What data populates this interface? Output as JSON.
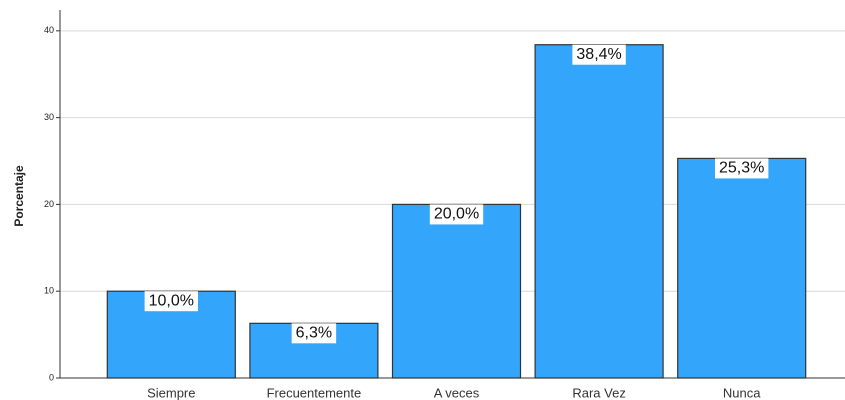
{
  "chart_data": {
    "type": "bar",
    "y_label": "Porcentaje",
    "categories": [
      "Siempre",
      "Frecuentemente",
      "A veces",
      "Rara Vez",
      "Nunca"
    ],
    "values": [
      10.0,
      6.3,
      20.0,
      38.4,
      25.3
    ],
    "value_labels": [
      "10,0%",
      "6,3%",
      "20,0%",
      "38,4%",
      "25,3%"
    ],
    "color": "#33a6fb",
    "ylim": [
      0,
      42.4
    ],
    "yticks": [
      0,
      10,
      20,
      30,
      40
    ],
    "grid": true
  }
}
